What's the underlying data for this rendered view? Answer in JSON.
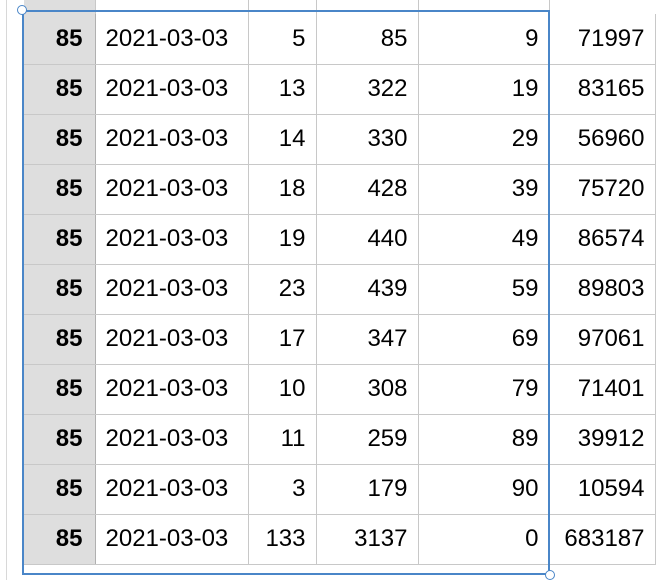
{
  "table": {
    "rows": [
      [
        "85",
        "2021-03-03",
        "5",
        "85",
        "9",
        "71997"
      ],
      [
        "85",
        "2021-03-03",
        "13",
        "322",
        "19",
        "83165"
      ],
      [
        "85",
        "2021-03-03",
        "14",
        "330",
        "29",
        "56960"
      ],
      [
        "85",
        "2021-03-03",
        "18",
        "428",
        "39",
        "75720"
      ],
      [
        "85",
        "2021-03-03",
        "19",
        "440",
        "49",
        "86574"
      ],
      [
        "85",
        "2021-03-03",
        "23",
        "439",
        "59",
        "89803"
      ],
      [
        "85",
        "2021-03-03",
        "17",
        "347",
        "69",
        "97061"
      ],
      [
        "85",
        "2021-03-03",
        "10",
        "308",
        "79",
        "71401"
      ],
      [
        "85",
        "2021-03-03",
        "11",
        "259",
        "89",
        "39912"
      ],
      [
        "85",
        "2021-03-03",
        "3",
        "179",
        "90",
        "10594"
      ],
      [
        "85",
        "2021-03-03",
        "133",
        "3137",
        "0",
        "683187"
      ]
    ]
  },
  "selection": {
    "color": "#4a86c8"
  },
  "colors": {
    "header_cell_bg": "#dedede",
    "grid_line": "#c8c8c8"
  }
}
